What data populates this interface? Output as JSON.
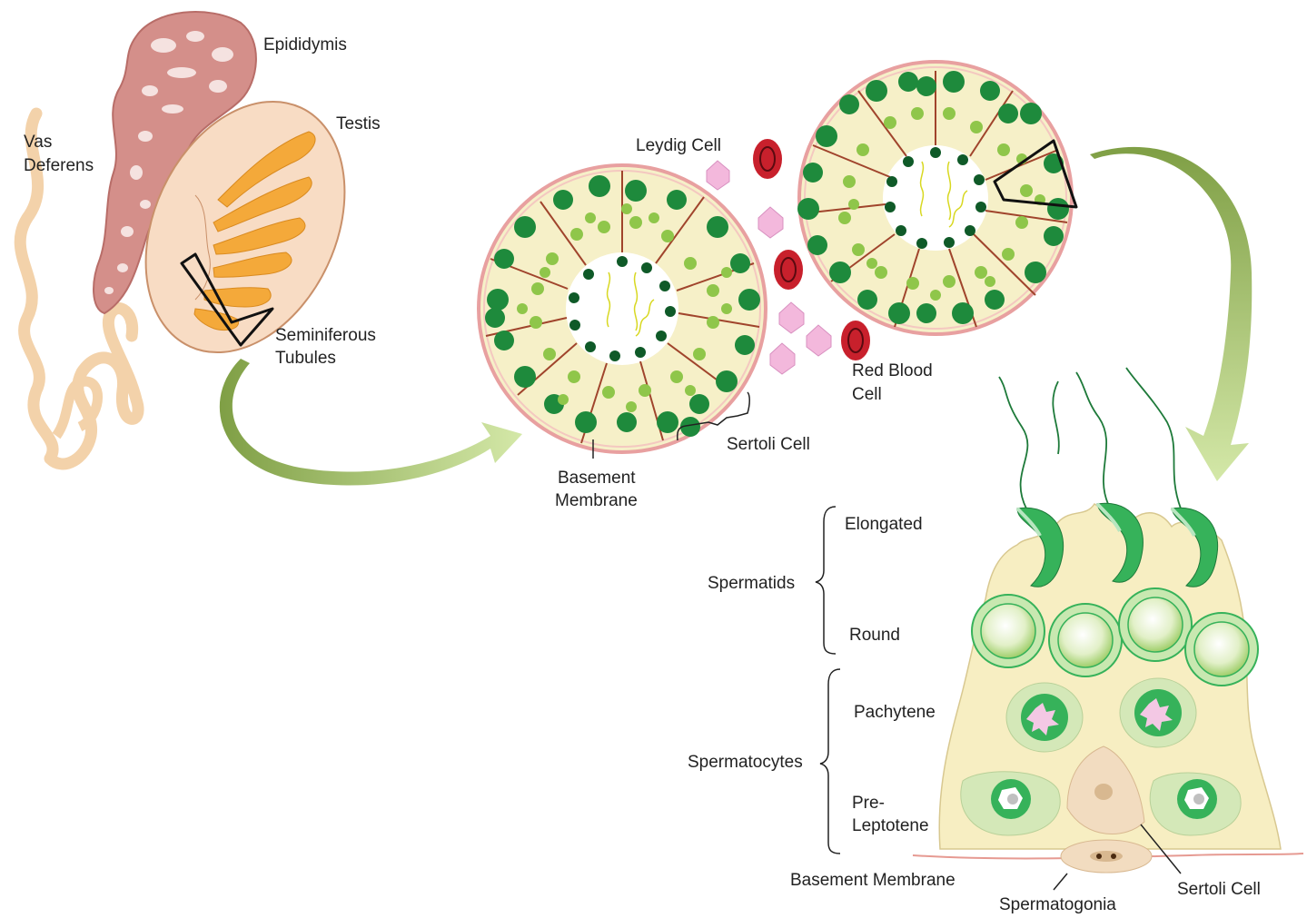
{
  "labels": {
    "epididymis": "Epididymis",
    "testis": "Testis",
    "vas_deferens_1": "Vas",
    "vas_deferens_2": "Deferens",
    "seminiferous_1": "Seminiferous",
    "seminiferous_2": "Tubules",
    "leydig_cell": "Leydig Cell",
    "red_blood_cell_1": "Red Blood",
    "red_blood_cell_2": "Cell",
    "sertoli_cell_top": "Sertoli Cell",
    "basement_membrane_top_1": "Basement",
    "basement_membrane_top_2": "Membrane",
    "spermatids": "Spermatids",
    "elongated": "Elongated",
    "round": "Round",
    "spermatocytes": "Spermatocytes",
    "pachytene": "Pachytene",
    "pre_leptotene_1": "Pre-",
    "pre_leptotene_2": "Leptotene",
    "basement_membrane_bottom": "Basement Membrane",
    "sertoli_cell_bottom": "Sertoli Cell",
    "spermatogonia": "Spermatogonia"
  },
  "colors": {
    "epididymis": "#d48f8a",
    "testis_fill": "#f8dcc4",
    "tubule": "#f4a93a",
    "vas": "#f3d2aa",
    "tubule_interior": "#f6f0c8",
    "dark_green": "#1e8a3c",
    "light_green": "#8fc64a",
    "sertoli_line": "#a0442c",
    "leydig": "#f3b8dc",
    "rbc": "#c8202c",
    "arrow": "#8fae52",
    "sertoli_body": "#f7eec2",
    "spermatid_green": "#36b25a"
  }
}
